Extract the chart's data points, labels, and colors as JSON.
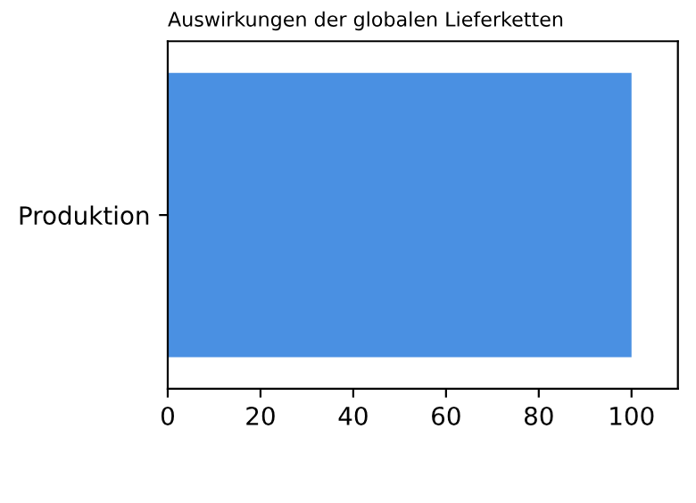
{
  "chart_data": {
    "type": "bar",
    "orientation": "horizontal",
    "title": "Auswirkungen der globalen Lieferketten",
    "categories": [
      "Produktion"
    ],
    "values": [
      100
    ],
    "color": "#4a90e2",
    "xlim": [
      0,
      110
    ],
    "xticks": [
      0,
      20,
      40,
      60,
      80,
      100
    ],
    "grid": false,
    "legend": false
  }
}
